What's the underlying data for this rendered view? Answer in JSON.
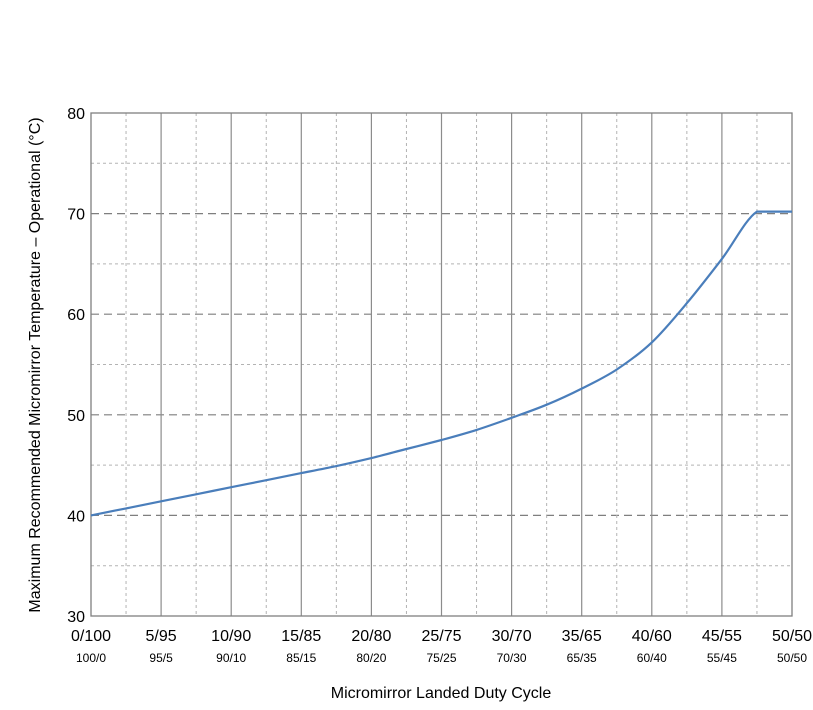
{
  "chart_data": {
    "type": "line",
    "title": "",
    "xlabel": "Micromirror Landed Duty Cycle",
    "ylabel": "Maximum Recommended Micromirror Temperature – Operational (°C)",
    "x_tick_labels_primary": [
      "0/100",
      "5/95",
      "10/90",
      "15/85",
      "20/80",
      "25/75",
      "30/70",
      "35/65",
      "40/60",
      "45/55",
      "50/50"
    ],
    "x_tick_labels_secondary": [
      "100/0",
      "95/5",
      "90/10",
      "85/15",
      "80/20",
      "75/25",
      "70/30",
      "65/35",
      "60/40",
      "55/45",
      "50/50"
    ],
    "xlim": [
      0,
      50
    ],
    "ylim": [
      30,
      80
    ],
    "y_major_ticks": [
      30,
      40,
      50,
      60,
      70,
      80
    ],
    "y_minor_step": 5,
    "x_minor_step": 2.5,
    "grid": true,
    "series": [
      {
        "color": "#4a7ebb",
        "x": [
          0,
          2.5,
          5,
          7.5,
          10,
          12.5,
          15,
          17.5,
          20,
          22.5,
          25,
          27.5,
          30,
          32.5,
          35,
          37.5,
          40,
          42.5,
          45,
          47.5,
          50
        ],
        "y": [
          40.0,
          40.7,
          41.4,
          42.1,
          42.8,
          43.5,
          44.2,
          44.9,
          45.7,
          46.6,
          47.5,
          48.5,
          49.7,
          51.0,
          52.6,
          54.5,
          57.2,
          61.1,
          65.5,
          70.2,
          70.2
        ]
      }
    ]
  }
}
